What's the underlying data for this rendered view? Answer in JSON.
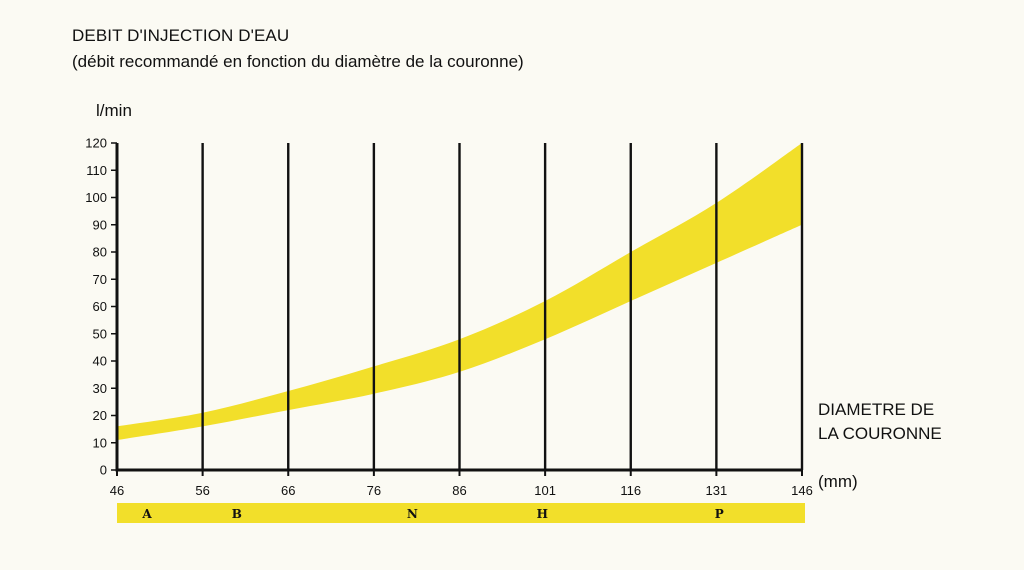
{
  "chart_data": {
    "type": "area",
    "title": "DEBIT D'INJECTION D'EAU",
    "subtitle": "(débit recommandé en fonction du diamètre de la couronne)",
    "ylabel": "l/min",
    "xlabel_lines": [
      "DIAMETRE DE",
      "LA COURONNE"
    ],
    "xunit": "(mm)",
    "ylim": [
      0,
      120
    ],
    "yticks": [
      0,
      10,
      20,
      30,
      40,
      50,
      60,
      70,
      80,
      90,
      100,
      110,
      120
    ],
    "categories": [
      "46",
      "56",
      "66",
      "76",
      "86",
      "101",
      "116",
      "131",
      "146"
    ],
    "grid": "vertical",
    "band_color": "#f2df2a",
    "series": [
      {
        "values": [
          11,
          16,
          22,
          28,
          36,
          48,
          62,
          76,
          90
        ]
      },
      {
        "values": [
          16,
          21,
          29,
          38,
          48,
          62,
          80,
          98,
          120
        ]
      }
    ],
    "class_bar": {
      "color": "#f2df2a",
      "labels": [
        {
          "text": "A",
          "at": 49.5
        },
        {
          "text": "B",
          "at": 60
        },
        {
          "text": "N",
          "at": 80.5
        },
        {
          "text": "H",
          "at": 100.5
        },
        {
          "text": "P",
          "at": 131.5
        }
      ]
    }
  }
}
